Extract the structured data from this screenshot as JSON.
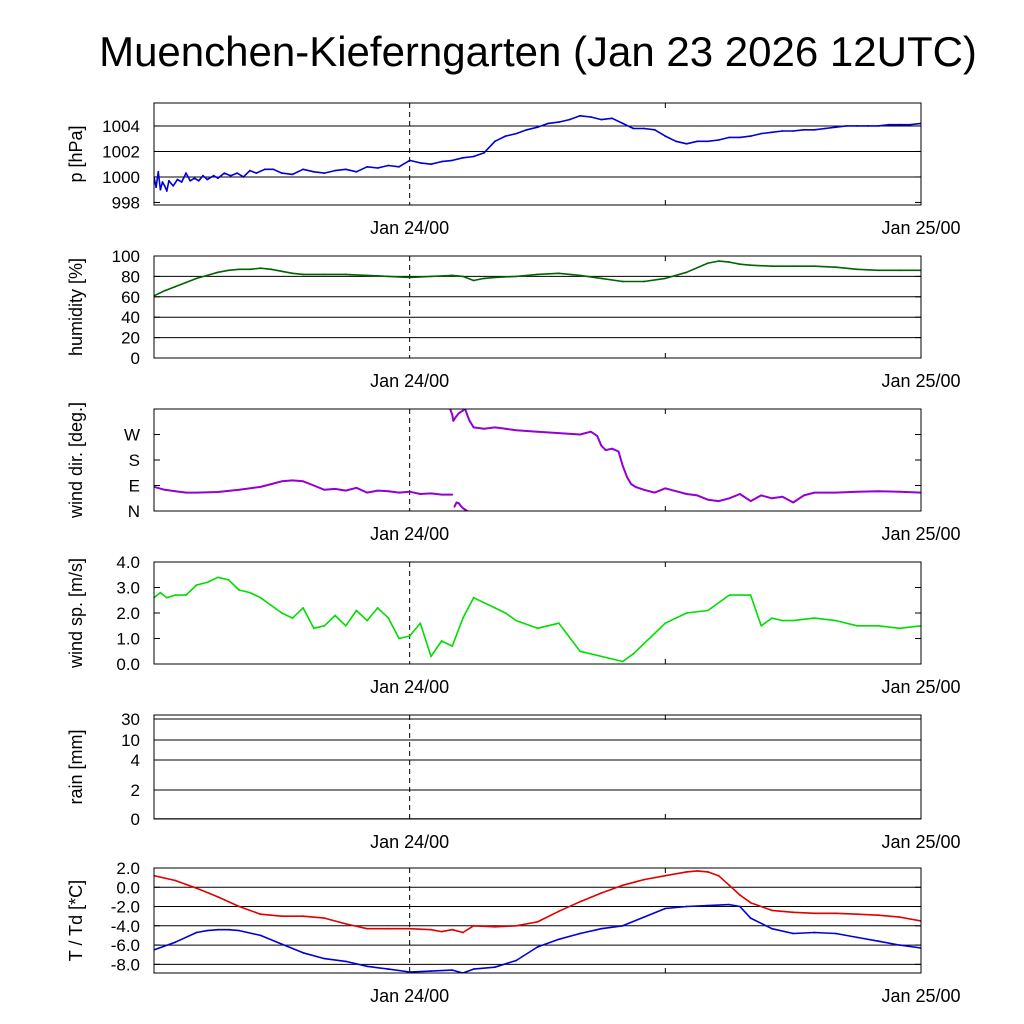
{
  "title": "Muenchen-Kieferngarten (Jan 23 2026 12UTC)",
  "colors": {
    "pressure": "#0000d8",
    "humidity": "#006400",
    "wind_dir": "#9400d3",
    "wind_speed": "#00dd00",
    "rain": "#000000",
    "temperature": "#e00000",
    "dewpoint": "#0000d8"
  },
  "chart_data": [
    {
      "id": "pressure",
      "type": "line",
      "ylabel": "p [hPa]",
      "ylim": [
        997.8,
        1005.8
      ],
      "yticks": [
        998,
        1000,
        1002,
        1004
      ],
      "ytick_labels": [
        "998",
        "1000",
        "1002",
        "1004"
      ],
      "grid_values": [
        1000,
        1002,
        1004
      ],
      "xlim": [
        0,
        36
      ],
      "xticks": [
        {
          "x": 12,
          "label": "Jan 24/00"
        },
        {
          "x": 36,
          "label": "Jan 25/00"
        }
      ],
      "series": [
        {
          "color_key": "pressure",
          "x": [
            0,
            0.1,
            0.2,
            0.3,
            0.4,
            0.5,
            0.6,
            0.7,
            0.9,
            1.1,
            1.3,
            1.5,
            1.7,
            1.9,
            2.1,
            2.3,
            2.5,
            2.8,
            3.0,
            3.3,
            3.6,
            3.9,
            4.2,
            4.5,
            4.8,
            5.2,
            5.6,
            6.0,
            6.5,
            7.0,
            7.5,
            8.0,
            8.5,
            9.0,
            9.5,
            10.0,
            10.5,
            11.0,
            11.5,
            12.0,
            12.5,
            13.0,
            13.5,
            14.0,
            14.5,
            15.0,
            15.5,
            16.0,
            16.5,
            17.0,
            17.5,
            18.0,
            18.5,
            19.0,
            19.5,
            20.0,
            20.5,
            21.0,
            21.5,
            22.0,
            22.5,
            23.0,
            23.5,
            24.0,
            24.5,
            25.0,
            25.5,
            26.0,
            26.5,
            27.0,
            27.5,
            28.0,
            28.5,
            29.0,
            29.5,
            30.0,
            30.5,
            31.0,
            31.5,
            32.0,
            32.5,
            33.0,
            33.5,
            34.0,
            34.5,
            35.0,
            35.5,
            36.0
          ],
          "y": [
            1000.0,
            999.2,
            1000.4,
            999.0,
            999.6,
            999.3,
            998.9,
            999.7,
            999.3,
            999.8,
            999.6,
            1000.3,
            999.7,
            999.9,
            999.7,
            1000.1,
            999.8,
            1000.1,
            999.9,
            1000.3,
            1000.1,
            1000.3,
            1000.0,
            1000.5,
            1000.3,
            1000.6,
            1000.6,
            1000.3,
            1000.2,
            1000.6,
            1000.4,
            1000.3,
            1000.5,
            1000.6,
            1000.4,
            1000.8,
            1000.7,
            1000.9,
            1000.8,
            1001.3,
            1001.1,
            1001.0,
            1001.2,
            1001.3,
            1001.5,
            1001.6,
            1001.9,
            1002.8,
            1003.2,
            1003.4,
            1003.7,
            1003.9,
            1004.2,
            1004.3,
            1004.5,
            1004.8,
            1004.7,
            1004.5,
            1004.6,
            1004.2,
            1003.8,
            1003.8,
            1003.7,
            1003.2,
            1002.8,
            1002.6,
            1002.8,
            1002.8,
            1002.9,
            1003.1,
            1003.1,
            1003.2,
            1003.4,
            1003.5,
            1003.6,
            1003.6,
            1003.7,
            1003.7,
            1003.8,
            1003.9,
            1004.0,
            1004.0,
            1004.0,
            1004.0,
            1004.1,
            1004.1,
            1004.1,
            1004.2
          ]
        }
      ]
    },
    {
      "id": "humidity",
      "type": "line",
      "ylabel": "humidity [%]",
      "ylim": [
        0,
        100
      ],
      "yticks": [
        0,
        20,
        40,
        60,
        80,
        100
      ],
      "ytick_labels": [
        "0",
        "20",
        "40",
        "60",
        "80",
        "100"
      ],
      "grid_values": [
        20,
        40,
        60,
        80
      ],
      "xlim": [
        0,
        36
      ],
      "xticks": [
        {
          "x": 12,
          "label": "Jan 24/00"
        },
        {
          "x": 36,
          "label": "Jan 25/00"
        }
      ],
      "series": [
        {
          "color_key": "humidity",
          "x": [
            0,
            0.5,
            1,
            1.5,
            2,
            2.5,
            3,
            3.5,
            4,
            4.5,
            5,
            5.5,
            6,
            6.5,
            7,
            8,
            9,
            10,
            11,
            12,
            13,
            14,
            14.5,
            15,
            15.5,
            16,
            17,
            18,
            19,
            20,
            21,
            22,
            23,
            24,
            25,
            26,
            26.5,
            27,
            27.5,
            28,
            29,
            30,
            31,
            32,
            33,
            34,
            35,
            36
          ],
          "y": [
            61,
            66,
            70,
            74,
            78,
            81,
            84,
            86,
            87,
            87,
            88,
            87,
            85,
            83,
            82,
            82,
            82,
            81,
            80,
            79,
            80,
            81,
            80,
            76,
            78,
            79,
            80,
            82,
            83,
            81,
            78,
            75,
            75,
            78,
            84,
            93,
            95,
            94,
            92,
            91,
            90,
            90,
            90,
            89,
            87,
            86,
            86,
            86
          ]
        }
      ]
    },
    {
      "id": "wind_dir",
      "type": "scatter",
      "ylabel": "wind dir. [deg.]",
      "ylim": [
        0,
        360
      ],
      "yticks": [
        0,
        90,
        180,
        270
      ],
      "ytick_labels": [
        "N",
        "E",
        "S",
        "W"
      ],
      "grid_values": [],
      "xlim": [
        0,
        36
      ],
      "xticks": [
        {
          "x": 12,
          "label": "Jan 24/00"
        },
        {
          "x": 36,
          "label": "Jan 25/00"
        }
      ],
      "series": [
        {
          "color_key": "wind_dir",
          "x": [
            0,
            0.5,
            1,
            1.5,
            2,
            3,
            4,
            5,
            5.5,
            6,
            6.5,
            7,
            7.5,
            8,
            8.5,
            9,
            9.5,
            10,
            10.5,
            11,
            11.5,
            12,
            12.5,
            13,
            13.5,
            14
          ],
          "y": [
            85,
            75,
            70,
            65,
            65,
            67,
            75,
            85,
            95,
            105,
            108,
            105,
            90,
            75,
            78,
            72,
            82,
            65,
            72,
            70,
            65,
            68,
            60,
            62,
            58,
            58
          ]
        },
        {
          "color_key": "wind_dir",
          "x": [
            14.1,
            14.2,
            14.3,
            14.4,
            14.5,
            14.6,
            14.7
          ],
          "y": [
            15,
            30,
            28,
            18,
            10,
            5,
            0
          ]
        },
        {
          "color_key": "wind_dir",
          "x": [
            13.9,
            14.0,
            14.05,
            14.15,
            14.3,
            14.45,
            14.6,
            14.8,
            15.0,
            15.5,
            16,
            16.5,
            17,
            18,
            19,
            20,
            20.5,
            20.8,
            21,
            21.2,
            21.5,
            21.8,
            22.0,
            22.2,
            22.4,
            22.6
          ],
          "y": [
            360,
            340,
            318,
            330,
            345,
            352,
            360,
            320,
            295,
            290,
            295,
            290,
            285,
            280,
            275,
            270,
            280,
            265,
            230,
            215,
            220,
            210,
            160,
            120,
            95,
            85
          ]
        },
        {
          "color_key": "wind_dir",
          "x": [
            22.6,
            23,
            23.5,
            24,
            24.5,
            25,
            25.5,
            26,
            26.5,
            27,
            27.5,
            28,
            28.5,
            29,
            29.5,
            30,
            30.5,
            31,
            32,
            33,
            34,
            35,
            36
          ],
          "y": [
            85,
            75,
            65,
            80,
            70,
            60,
            55,
            40,
            35,
            45,
            60,
            35,
            55,
            45,
            50,
            30,
            55,
            65,
            65,
            68,
            70,
            68,
            65
          ]
        }
      ]
    },
    {
      "id": "wind_speed",
      "type": "line",
      "ylabel": "wind sp. [m/s]",
      "ylim": [
        0,
        4
      ],
      "yticks": [
        0,
        1,
        2,
        3,
        4
      ],
      "ytick_labels": [
        "0.0",
        "1.0",
        "2.0",
        "3.0",
        "4.0"
      ],
      "grid_values": [],
      "xlim": [
        0,
        36
      ],
      "xticks": [
        {
          "x": 12,
          "label": "Jan 24/00"
        },
        {
          "x": 36,
          "label": "Jan 25/00"
        }
      ],
      "series": [
        {
          "color_key": "wind_speed",
          "x": [
            0,
            0.3,
            0.6,
            1,
            1.5,
            2,
            2.5,
            3,
            3.5,
            4,
            4.5,
            5,
            5.5,
            6,
            6.5,
            7,
            7.5,
            8,
            8.5,
            9,
            9.5,
            10,
            10.5,
            11,
            11.5,
            12,
            12.5,
            13,
            13.5,
            14,
            14.5,
            15,
            15.5,
            16,
            16.5,
            17,
            18,
            19,
            20,
            21,
            22,
            22.5,
            23,
            24,
            25,
            26,
            27,
            28,
            28.5,
            29,
            29.5,
            30,
            31,
            32,
            33,
            34,
            35,
            36
          ],
          "y": [
            2.6,
            2.8,
            2.6,
            2.7,
            2.7,
            3.1,
            3.2,
            3.4,
            3.3,
            2.9,
            2.8,
            2.6,
            2.3,
            2.0,
            1.8,
            2.2,
            1.4,
            1.5,
            1.9,
            1.5,
            2.1,
            1.7,
            2.2,
            1.8,
            1.0,
            1.1,
            1.6,
            0.3,
            0.9,
            0.7,
            1.8,
            2.6,
            2.4,
            2.2,
            2.0,
            1.7,
            1.4,
            1.6,
            0.5,
            0.3,
            0.1,
            0.4,
            0.8,
            1.6,
            2.0,
            2.1,
            2.7,
            2.7,
            1.5,
            1.8,
            1.7,
            1.7,
            1.8,
            1.7,
            1.5,
            1.5,
            1.4,
            1.5
          ]
        }
      ]
    },
    {
      "id": "rain",
      "type": "line",
      "ylabel": "rain [mm]",
      "ylim": [
        0,
        30
      ],
      "yticks": [
        0,
        2,
        4,
        10,
        30
      ],
      "ytick_labels": [
        "0",
        "2",
        "4",
        "10",
        "30"
      ],
      "grid_values": [
        2,
        4,
        10,
        30
      ],
      "xlim": [
        0,
        36
      ],
      "xticks": [
        {
          "x": 12,
          "label": "Jan 24/00"
        },
        {
          "x": 36,
          "label": "Jan 25/00"
        }
      ],
      "series": [
        {
          "color_key": "rain",
          "x": [
            0,
            36
          ],
          "y": [
            0,
            0
          ]
        }
      ]
    },
    {
      "id": "temperature",
      "type": "line",
      "ylabel": "T / Td [*C]",
      "ylim": [
        -8.9,
        2.0
      ],
      "yticks": [
        2,
        0,
        -2,
        -4,
        -6,
        -8
      ],
      "ytick_labels": [
        "2.0",
        "0.0",
        "-2.0",
        "-4.0",
        "-6.0",
        "-8.0"
      ],
      "grid_values": [
        0,
        -2,
        -4,
        -6,
        -8
      ],
      "xlim": [
        0,
        36
      ],
      "xticks": [
        {
          "x": 12,
          "label": "Jan 24/00"
        },
        {
          "x": 36,
          "label": "Jan 25/00"
        }
      ],
      "series": [
        {
          "color_key": "temperature",
          "x": [
            0,
            1,
            2,
            3,
            4,
            5,
            6,
            7,
            8,
            9,
            10,
            11,
            12,
            13,
            13.5,
            14,
            14.5,
            15,
            16,
            17,
            18,
            19,
            20,
            21,
            22,
            23,
            24,
            25,
            25.5,
            26,
            26.5,
            27,
            27.5,
            28,
            29,
            30,
            31,
            32,
            33,
            34,
            35,
            36
          ],
          "y": [
            1.2,
            0.7,
            -0.1,
            -1.0,
            -2.0,
            -2.8,
            -3.0,
            -3.0,
            -3.2,
            -3.8,
            -4.3,
            -4.3,
            -4.3,
            -4.4,
            -4.6,
            -4.4,
            -4.7,
            -4.0,
            -4.1,
            -4.0,
            -3.6,
            -2.5,
            -1.5,
            -0.6,
            0.2,
            0.8,
            1.2,
            1.6,
            1.7,
            1.6,
            1.2,
            0.2,
            -0.8,
            -1.6,
            -2.4,
            -2.6,
            -2.7,
            -2.7,
            -2.8,
            -2.9,
            -3.1,
            -3.5
          ]
        },
        {
          "color_key": "dewpoint",
          "x": [
            0,
            1,
            2,
            2.5,
            3,
            3.5,
            4,
            5,
            6,
            7,
            8,
            9,
            10,
            11,
            12,
            13,
            14,
            14.5,
            15,
            16,
            17,
            18,
            19,
            20,
            21,
            22,
            23,
            24,
            25,
            26,
            27,
            27.5,
            28,
            29,
            30,
            31,
            32,
            33,
            34,
            35,
            36
          ],
          "y": [
            -6.5,
            -5.7,
            -4.7,
            -4.5,
            -4.4,
            -4.4,
            -4.5,
            -5.0,
            -5.9,
            -6.8,
            -7.4,
            -7.7,
            -8.2,
            -8.5,
            -8.8,
            -8.7,
            -8.6,
            -8.9,
            -8.5,
            -8.3,
            -7.6,
            -6.2,
            -5.4,
            -4.8,
            -4.3,
            -4.0,
            -3.1,
            -2.2,
            -2.0,
            -1.9,
            -1.8,
            -2.0,
            -3.2,
            -4.3,
            -4.8,
            -4.7,
            -4.8,
            -5.2,
            -5.6,
            -6.0,
            -6.3
          ]
        }
      ]
    }
  ]
}
